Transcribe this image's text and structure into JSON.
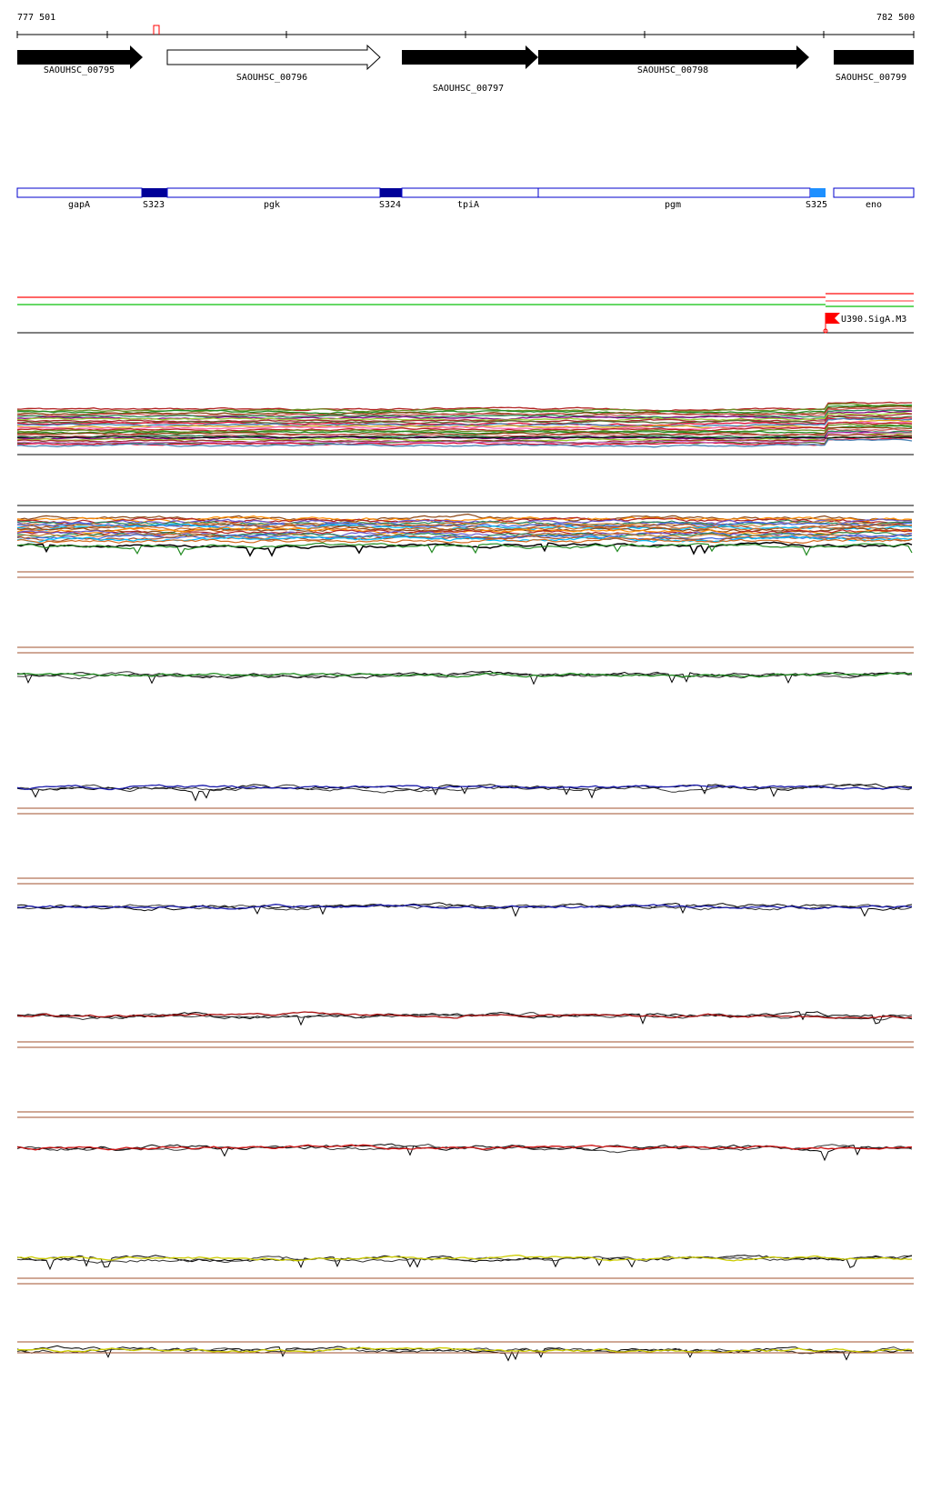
{
  "coords": {
    "start": "777 501",
    "end": "782 500"
  },
  "genes": [
    {
      "id": "SAOUHSC_00795",
      "strand": "+",
      "filled": true
    },
    {
      "id": "SAOUHSC_00796",
      "strand": "+",
      "filled": false
    },
    {
      "id": "SAOUHSC_00797",
      "strand": "+",
      "filled": true
    },
    {
      "id": "SAOUHSC_00798",
      "strand": "+",
      "filled": true
    },
    {
      "id": "SAOUHSC_00799",
      "strand": "+",
      "filled": true
    }
  ],
  "features": [
    {
      "name": "gapA",
      "kind": "gene"
    },
    {
      "name": "S323",
      "kind": "segment"
    },
    {
      "name": "pgk",
      "kind": "gene"
    },
    {
      "name": "S324",
      "kind": "segment"
    },
    {
      "name": "tpiA",
      "kind": "gene"
    },
    {
      "name": "pgm",
      "kind": "gene"
    },
    {
      "name": "S325",
      "kind": "segment"
    },
    {
      "name": "eno",
      "kind": "gene"
    }
  ],
  "promoter": {
    "label": "U390.SigA.M3",
    "color": "#ff0000"
  },
  "colors": {
    "gene_fill": "#000000",
    "feature_outline": "#0000cc",
    "segment_dark": "#000099",
    "segment_light": "#1e90ff",
    "tracks": [
      "#000000",
      "#228b22",
      "#1a1aaa",
      "#1a1aaa",
      "#aa1111",
      "#cc1111",
      "#cccc00",
      "#cccc00"
    ]
  }
}
